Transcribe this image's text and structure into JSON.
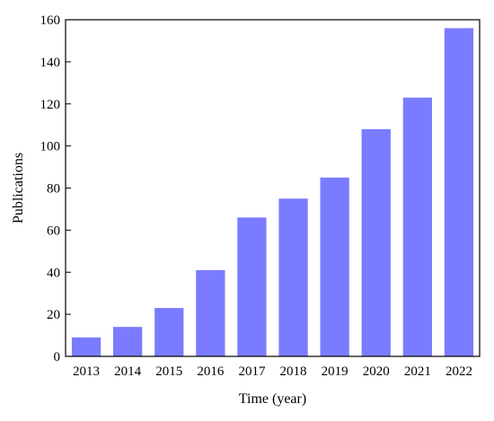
{
  "chart_data": {
    "type": "bar",
    "title": "",
    "xlabel": "Time (year)",
    "ylabel": "Publications",
    "categories": [
      "2013",
      "2014",
      "2015",
      "2016",
      "2017",
      "2018",
      "2019",
      "2020",
      "2021",
      "2022"
    ],
    "values": [
      9,
      14,
      23,
      41,
      66,
      75,
      85,
      108,
      123,
      156
    ],
    "ylim": [
      0,
      160
    ],
    "yticks": [
      0,
      20,
      40,
      60,
      80,
      100,
      120,
      140,
      160
    ],
    "grid": false,
    "legend": "none",
    "bar_color": "#7b7bff"
  }
}
